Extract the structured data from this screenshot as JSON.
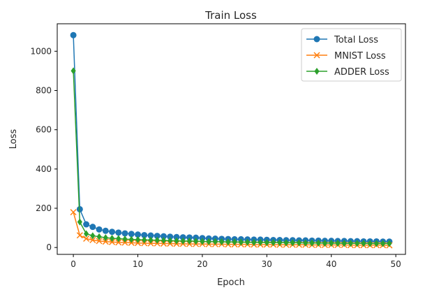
{
  "chart_data": {
    "type": "line",
    "title": "Train Loss",
    "xlabel": "Epoch",
    "ylabel": "Loss",
    "xlim": [
      -2.5,
      51.5
    ],
    "ylim": [
      -35,
      1140
    ],
    "xticks": [
      0,
      10,
      20,
      30,
      40,
      50
    ],
    "yticks": [
      0,
      200,
      400,
      600,
      800,
      1000
    ],
    "grid": false,
    "legend_position": "top-right",
    "x": [
      0,
      1,
      2,
      3,
      4,
      5,
      6,
      7,
      8,
      9,
      10,
      11,
      12,
      13,
      14,
      15,
      16,
      17,
      18,
      19,
      20,
      21,
      22,
      23,
      24,
      25,
      26,
      27,
      28,
      29,
      30,
      31,
      32,
      33,
      34,
      35,
      36,
      37,
      38,
      39,
      40,
      41,
      42,
      43,
      44,
      45,
      46,
      47,
      48,
      49
    ],
    "series": [
      {
        "name": "Total Loss",
        "color": "#1f77b4",
        "marker": "circle",
        "values": [
          1082,
          195,
          118,
          105,
          92,
          85,
          80,
          76,
          72,
          69,
          66,
          63,
          61,
          59,
          57,
          55,
          53,
          52,
          51,
          50,
          48,
          46,
          45,
          44,
          43,
          42,
          42,
          41,
          40,
          40,
          39,
          38,
          38,
          37,
          37,
          36,
          36,
          35,
          35,
          34,
          34,
          33,
          33,
          32,
          32,
          31,
          31,
          31,
          30,
          30
        ]
      },
      {
        "name": "MNIST Loss",
        "color": "#ff7f0e",
        "marker": "x",
        "values": [
          180,
          62,
          45,
          38,
          33,
          30,
          28,
          26,
          25,
          24,
          23,
          22,
          21,
          21,
          20,
          20,
          19,
          19,
          18,
          18,
          18,
          17,
          17,
          17,
          16,
          16,
          16,
          16,
          15,
          15,
          15,
          15,
          14,
          14,
          14,
          14,
          14,
          13,
          13,
          13,
          13,
          13,
          13,
          12,
          12,
          12,
          12,
          12,
          12,
          11
        ]
      },
      {
        "name": "ADDER Loss",
        "color": "#2ca02c",
        "marker": "diamond",
        "values": [
          900,
          130,
          70,
          60,
          55,
          50,
          47,
          45,
          43,
          41,
          40,
          39,
          38,
          37,
          36,
          35,
          34,
          33,
          33,
          32,
          31,
          30,
          30,
          29,
          28,
          28,
          27,
          27,
          26,
          26,
          25,
          25,
          25,
          24,
          24,
          24,
          23,
          23,
          23,
          22,
          22,
          22,
          21,
          21,
          21,
          21,
          20,
          20,
          20,
          20
        ]
      }
    ]
  }
}
